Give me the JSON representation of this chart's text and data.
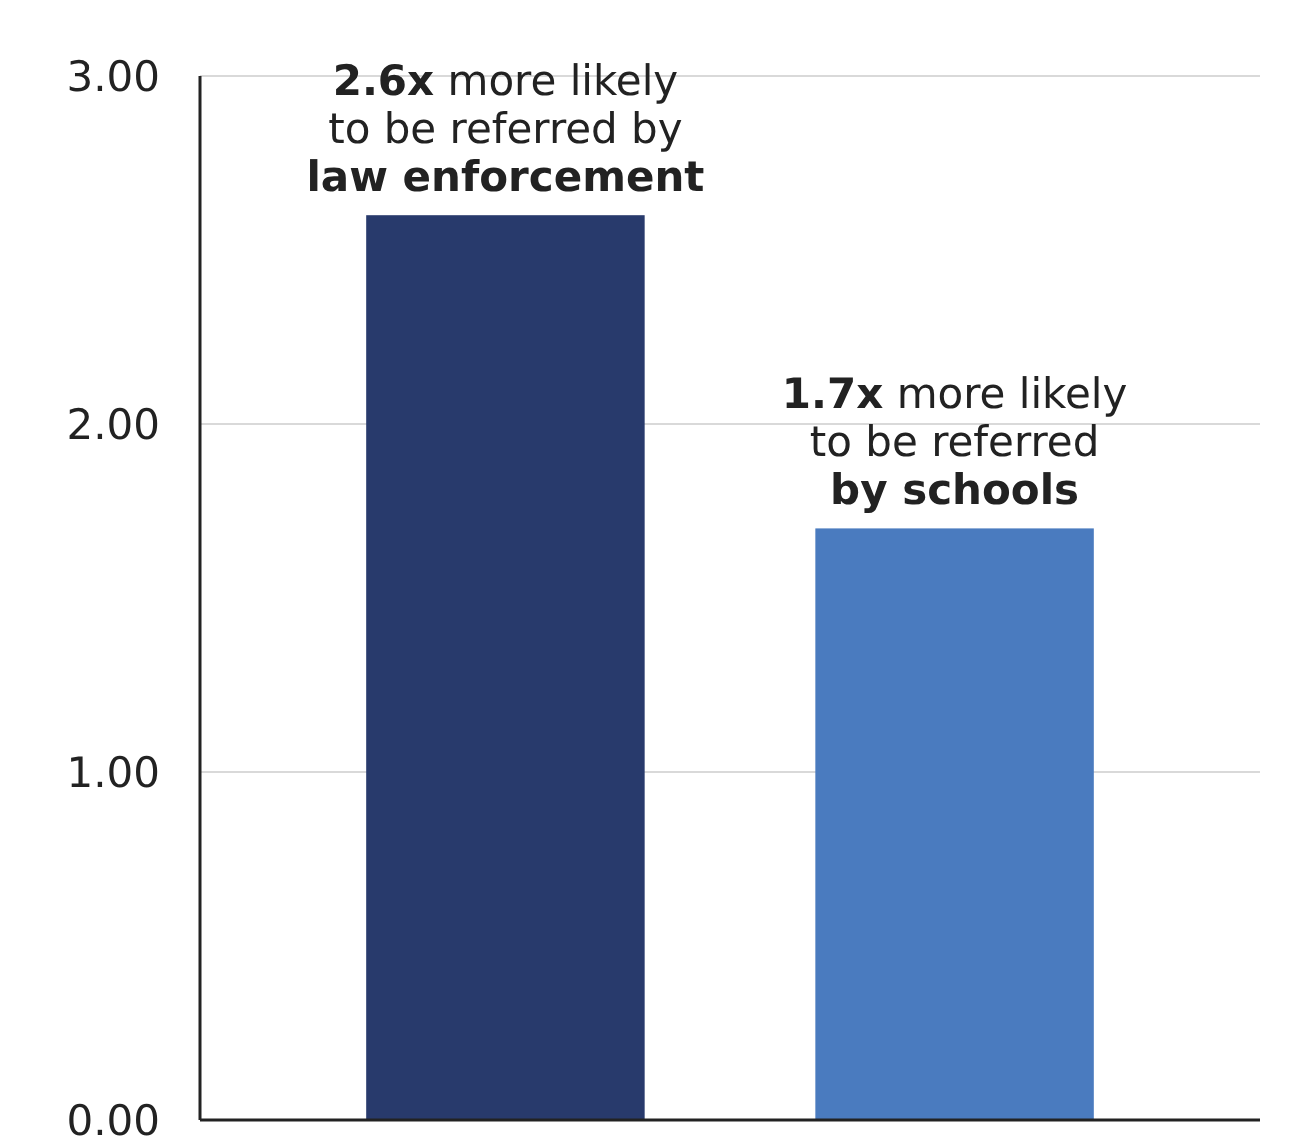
{
  "chart_data": {
    "type": "bar",
    "categories": [
      null,
      null
    ],
    "values": [
      2.6,
      1.7
    ],
    "colors": [
      "#283a6c",
      "#4a7bbf"
    ],
    "ylim": [
      0,
      3
    ],
    "yticks": [
      {
        "value": 0,
        "label": "0.00"
      },
      {
        "value": 1,
        "label": "1.00"
      },
      {
        "value": 2,
        "label": "2.00"
      },
      {
        "value": 3,
        "label": "3.00"
      }
    ],
    "grid": "y",
    "value_labels": [
      "2.6x more likely\nto be referred by\nlaw enforcement",
      "1.7x more likely\nto be referred\nby schools"
    ]
  }
}
